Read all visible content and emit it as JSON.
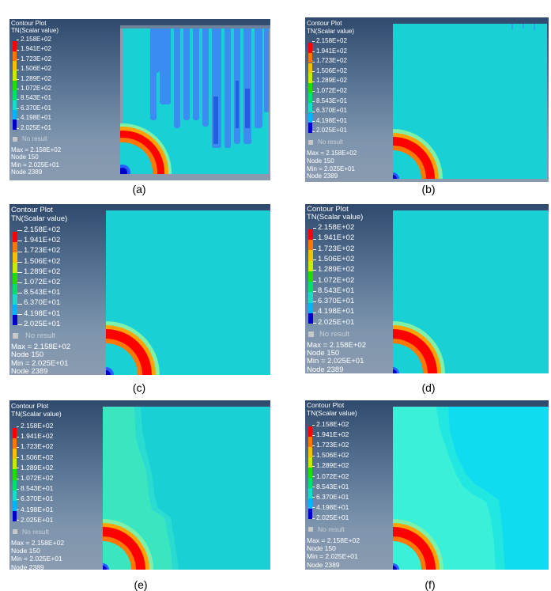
{
  "legend": {
    "title": "Contour Plot",
    "subtitle": "TN(Scalar value)",
    "values": [
      "2.158E+02",
      "1.941E+02",
      "1.723E+02",
      "1.506E+02",
      "1.289E+02",
      "1.072E+02",
      "8.543E+01",
      "6.370E+01",
      "4.198E+01",
      "2.025E+01"
    ],
    "colors": [
      "#ff0000",
      "#ff7700",
      "#f2c400",
      "#c8ec00",
      "#22dc00",
      "#00e06a",
      "#18dcc8",
      "#00b4ff",
      "#2a5cff",
      "#0000c8"
    ],
    "no_result": "No result",
    "max": "Max = 2.158E+02",
    "max_node": "Node 150",
    "min": "Min = 2.025E+01",
    "min_node": "Node 2389"
  },
  "panels": [
    {
      "id": "a",
      "caption": "(a)"
    },
    {
      "id": "b",
      "caption": "(b)"
    },
    {
      "id": "c",
      "caption": "(c)"
    },
    {
      "id": "d",
      "caption": "(d)"
    },
    {
      "id": "e",
      "caption": "(e)"
    },
    {
      "id": "f",
      "caption": "(f)"
    }
  ]
}
